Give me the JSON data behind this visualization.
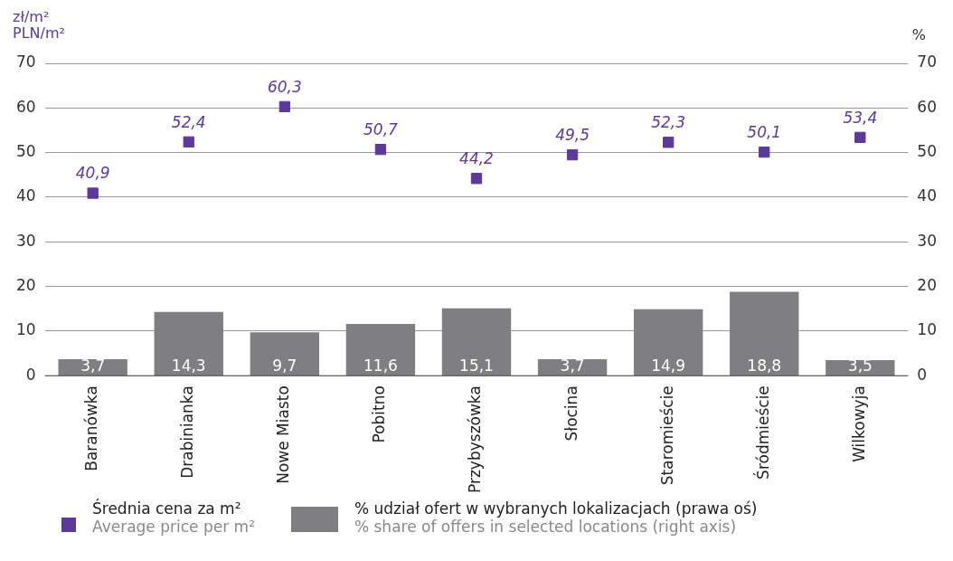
{
  "chart_data": {
    "type": "bar",
    "ylabel": "zł/m²\nPLN/m²",
    "y2label": "%",
    "categories": [
      "Baranówka",
      "Drabinianka",
      "Nowe Miasto",
      "Pobitno",
      "Przybyszówka",
      "Słocina",
      "Staromieście",
      "Śródmieście",
      "Wilkowyja"
    ],
    "series": [
      {
        "name": "Średnia cena za m²\nAverage price per m²",
        "type": "scatter",
        "color": "#5b3a99",
        "values": [
          40.9,
          52.4,
          60.3,
          50.7,
          44.2,
          49.5,
          52.3,
          50.1,
          53.4
        ],
        "value_labels": [
          "40,9",
          "52,4",
          "60,3",
          "50,7",
          "44,2",
          "49,5",
          "52,3",
          "50,1",
          "53,4"
        ]
      },
      {
        "name": "% udział ofert w wybranych lokalizacjach (prawa oś)\n% share of offers in selected locations (right axis)",
        "axis": "y2",
        "color": "#7f7f82",
        "values": [
          3.7,
          14.3,
          9.7,
          11.6,
          15.1,
          3.7,
          14.9,
          18.8,
          3.5
        ],
        "value_labels": [
          "3,7",
          "14,3",
          "9,7",
          "11,6",
          "15,1",
          "3,7",
          "14,9",
          "18,8",
          "3,5"
        ]
      }
    ],
    "ylim": [
      0,
      70
    ],
    "yticks": [
      0,
      10,
      20,
      30,
      40,
      50,
      60,
      70
    ],
    "y2lim": [
      0,
      70
    ],
    "y2ticks": [
      0,
      10,
      20,
      30,
      40,
      50,
      60,
      70
    ],
    "grid": "y",
    "legend": "bottom",
    "marker": "square"
  }
}
